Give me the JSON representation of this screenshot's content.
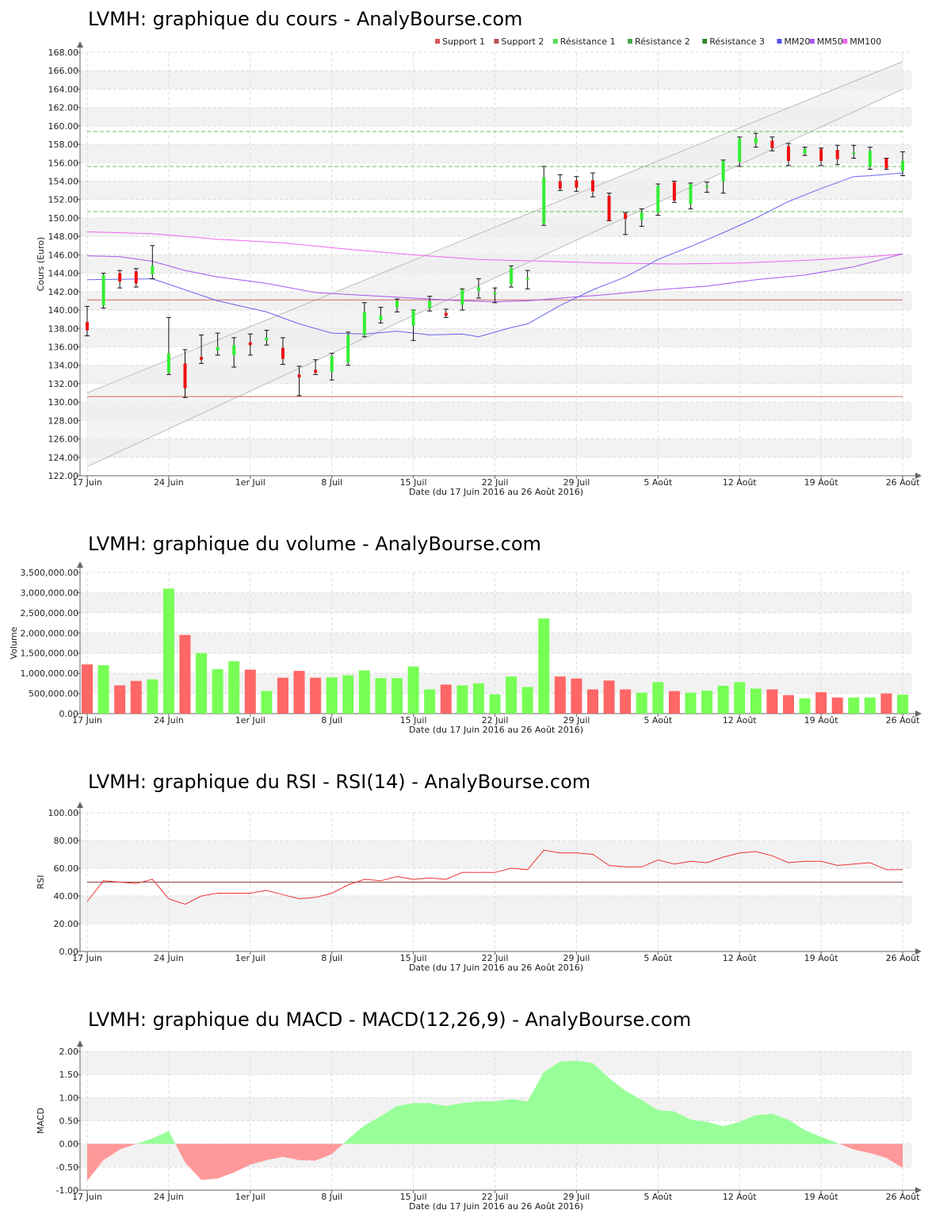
{
  "titles": {
    "price": "LVMH: graphique du cours - AnalyBourse.com",
    "volume": "LVMH: graphique du volume - AnalyBourse.com",
    "rsi": "LVMH: graphique du RSI - RSI(14) - AnalyBourse.com",
    "macd": "LVMH: graphique du MACD - MACD(12,26,9) - AnalyBourse.com"
  },
  "xlabel": "Date (du 17 Juin 2016 au 26 Août 2016)",
  "colors": {
    "up": "#33ee33",
    "down": "#ee1111",
    "vol_up": "#77ff55",
    "vol_down": "#ff6666",
    "support": "#cc6666",
    "resistance": "#66bb66",
    "mm20": "#6666ee",
    "mm50": "#aa55ee",
    "mm100": "#ee66ee",
    "rsi": "#ee3333",
    "macd_pos": "#99ff99",
    "macd_neg": "#ff9999"
  },
  "chart_data": [
    {
      "type": "candlestick",
      "name": "price",
      "ylabel": "Cours (Euro)",
      "ylim": [
        122,
        168
      ],
      "xlim": [
        0,
        49
      ],
      "x_ticks": [
        {
          "i": 0,
          "label": "17 Juin"
        },
        {
          "i": 5,
          "label": "24 Juin"
        },
        {
          "i": 10,
          "label": "1er Juil"
        },
        {
          "i": 15,
          "label": "8 Juil"
        },
        {
          "i": 20,
          "label": "15 Juil"
        },
        {
          "i": 25,
          "label": "22 Juil"
        },
        {
          "i": 30,
          "label": "29 Juil"
        },
        {
          "i": 35,
          "label": "5 Août"
        },
        {
          "i": 40,
          "label": "12 Août"
        },
        {
          "i": 45,
          "label": "19 Août"
        },
        {
          "i": 50,
          "label": "26 Août"
        }
      ],
      "y_ticks": [
        "122.00",
        "124.00",
        "126.00",
        "128.00",
        "130.00",
        "132.00",
        "134.00",
        "136.00",
        "138.00",
        "140.00",
        "142.00",
        "144.00",
        "146.00",
        "148.00",
        "150.00",
        "152.00",
        "154.00",
        "156.00",
        "158.00",
        "160.00",
        "162.00",
        "164.00",
        "166.00",
        "168.00"
      ],
      "legend": [
        "Support 1",
        "Support 2",
        "Résistance 1",
        "Résistance 2",
        "Résistance 3",
        "MM20",
        "MM50",
        "MM100"
      ],
      "legend_colors": [
        "#dd5555",
        "#bb5555",
        "#55dd55",
        "#44aa44",
        "#338833",
        "#5555ee",
        "#aa55ee",
        "#ee66ee"
      ],
      "ohlc": [
        [
          138.7,
          140.4,
          137.2,
          137.8
        ],
        [
          140.5,
          144.0,
          140.2,
          143.8
        ],
        [
          144.0,
          144.3,
          142.4,
          143.1
        ],
        [
          144.2,
          144.5,
          142.5,
          142.9
        ],
        [
          143.9,
          147.0,
          143.4,
          144.8
        ],
        [
          133.2,
          139.2,
          133.0,
          135.3
        ],
        [
          134.2,
          135.7,
          130.5,
          131.5
        ],
        [
          134.9,
          137.3,
          134.2,
          134.6
        ],
        [
          135.6,
          137.5,
          135.1,
          136.0
        ],
        [
          135.1,
          137.0,
          133.8,
          136.2
        ],
        [
          136.5,
          137.4,
          135.1,
          136.2
        ],
        [
          136.7,
          137.8,
          136.2,
          137.0
        ],
        [
          135.9,
          137.0,
          134.1,
          134.7
        ],
        [
          133.0,
          133.9,
          130.7,
          132.7
        ],
        [
          133.5,
          134.6,
          133.0,
          133.2
        ],
        [
          133.3,
          135.3,
          132.4,
          135.0
        ],
        [
          134.3,
          137.6,
          134.0,
          137.3
        ],
        [
          137.3,
          140.8,
          137.1,
          139.8
        ],
        [
          138.9,
          140.3,
          138.6,
          139.4
        ],
        [
          140.3,
          141.2,
          139.8,
          141.0
        ],
        [
          138.3,
          140.0,
          136.7,
          140.0
        ],
        [
          140.2,
          141.5,
          139.9,
          141.0
        ],
        [
          139.7,
          140.1,
          139.2,
          139.4
        ],
        [
          140.6,
          142.3,
          140.0,
          142.2
        ],
        [
          142.1,
          143.4,
          141.3,
          142.5
        ],
        [
          141.7,
          142.4,
          140.8,
          141.9
        ],
        [
          142.8,
          144.8,
          142.5,
          144.6
        ],
        [
          143.3,
          144.3,
          142.3,
          143.5
        ],
        [
          149.4,
          155.6,
          149.2,
          154.4
        ],
        [
          154.0,
          154.7,
          153.0,
          153.2
        ],
        [
          154.1,
          154.5,
          152.9,
          153.3
        ],
        [
          154.1,
          154.9,
          152.3,
          152.9
        ],
        [
          152.4,
          152.7,
          149.7,
          149.7
        ],
        [
          150.5,
          150.6,
          148.2,
          149.9
        ],
        [
          149.8,
          151.0,
          149.1,
          150.6
        ],
        [
          150.6,
          153.7,
          150.3,
          153.5
        ],
        [
          153.9,
          154.0,
          151.7,
          151.9
        ],
        [
          151.5,
          153.8,
          151.0,
          153.7
        ],
        [
          153.4,
          153.9,
          152.8,
          153.5
        ],
        [
          154.0,
          156.3,
          152.7,
          156.2
        ],
        [
          156.1,
          158.8,
          155.6,
          158.6
        ],
        [
          158.1,
          159.2,
          157.7,
          158.7
        ],
        [
          158.4,
          158.8,
          157.3,
          157.6
        ],
        [
          157.8,
          158.1,
          155.7,
          156.2
        ],
        [
          157.0,
          157.7,
          156.8,
          157.5
        ],
        [
          157.5,
          157.6,
          155.7,
          156.2
        ],
        [
          157.4,
          157.9,
          155.8,
          156.4
        ],
        [
          157.1,
          157.9,
          156.5,
          157.1
        ],
        [
          155.6,
          157.7,
          155.3,
          157.3
        ],
        [
          156.5,
          156.5,
          155.3,
          155.4
        ],
        [
          155.1,
          157.2,
          154.6,
          156.2
        ]
      ],
      "support_1": 141.1,
      "support_2": 130.6,
      "resistance_1": 150.7,
      "resistance_2": 155.6,
      "resistance_3": 159.4,
      "channel_lower": [
        [
          0,
          123.0
        ],
        [
          50,
          164.0
        ]
      ],
      "channel_upper": [
        [
          0,
          131.0
        ],
        [
          50,
          167.0
        ]
      ],
      "mm20": [
        [
          0,
          143.3
        ],
        [
          4,
          143.4
        ],
        [
          5,
          142.8
        ],
        [
          8,
          141.0
        ],
        [
          11,
          139.8
        ],
        [
          13,
          138.5
        ],
        [
          15,
          137.5
        ],
        [
          17,
          137.4
        ],
        [
          19,
          137.7
        ],
        [
          21,
          137.3
        ],
        [
          23,
          137.4
        ],
        [
          24,
          137.1
        ],
        [
          26,
          138.1
        ],
        [
          27,
          138.5
        ],
        [
          29,
          140.5
        ],
        [
          31,
          142.2
        ],
        [
          33,
          143.6
        ],
        [
          35,
          145.5
        ],
        [
          37,
          146.9
        ],
        [
          39,
          148.4
        ],
        [
          41,
          150.0
        ],
        [
          43,
          151.8
        ],
        [
          45,
          153.2
        ],
        [
          47,
          154.5
        ],
        [
          48,
          154.6
        ],
        [
          50,
          154.9
        ]
      ],
      "mm50": [
        [
          0,
          145.9
        ],
        [
          2,
          145.8
        ],
        [
          4,
          145.3
        ],
        [
          6,
          144.3
        ],
        [
          8,
          143.6
        ],
        [
          11,
          142.9
        ],
        [
          14,
          141.9
        ],
        [
          17,
          141.6
        ],
        [
          20,
          141.3
        ],
        [
          23,
          141.0
        ],
        [
          25,
          140.9
        ],
        [
          27,
          141.0
        ],
        [
          29,
          141.3
        ],
        [
          32,
          141.7
        ],
        [
          35,
          142.2
        ],
        [
          38,
          142.6
        ],
        [
          41,
          143.3
        ],
        [
          44,
          143.8
        ],
        [
          47,
          144.7
        ],
        [
          50,
          146.1
        ]
      ],
      "mm100": [
        [
          0,
          148.5
        ],
        [
          4,
          148.3
        ],
        [
          8,
          147.7
        ],
        [
          12,
          147.3
        ],
        [
          16,
          146.6
        ],
        [
          20,
          146.0
        ],
        [
          24,
          145.5
        ],
        [
          28,
          145.3
        ],
        [
          32,
          145.1
        ],
        [
          36,
          145.0
        ],
        [
          40,
          145.1
        ],
        [
          44,
          145.4
        ],
        [
          48,
          145.8
        ],
        [
          50,
          146.1
        ]
      ]
    },
    {
      "type": "bar",
      "name": "volume",
      "ylabel": "Volume",
      "ylim": [
        0,
        3500000
      ],
      "y_ticks": [
        "0.00",
        "500,000.00",
        "1,000,000.00",
        "1,500,000.00",
        "2,000,000.00",
        "2,500,000.00",
        "3,000,000.00",
        "3,500,000.00"
      ],
      "values": [
        1220000,
        1200000,
        700000,
        810000,
        850000,
        3100000,
        1950000,
        1500000,
        1100000,
        1300000,
        1090000,
        560000,
        890000,
        1060000,
        890000,
        900000,
        950000,
        1070000,
        880000,
        880000,
        1170000,
        600000,
        720000,
        700000,
        750000,
        480000,
        920000,
        660000,
        2360000,
        920000,
        870000,
        600000,
        820000,
        600000,
        520000,
        780000,
        560000,
        520000,
        570000,
        690000,
        780000,
        620000,
        600000,
        460000,
        380000,
        530000,
        400000,
        400000,
        400000,
        500000,
        470000
      ],
      "up": [
        false,
        true,
        false,
        false,
        true,
        true,
        false,
        true,
        true,
        true,
        false,
        true,
        false,
        false,
        false,
        true,
        true,
        true,
        true,
        true,
        true,
        true,
        false,
        true,
        true,
        true,
        true,
        true,
        true,
        false,
        false,
        false,
        false,
        false,
        true,
        true,
        false,
        true,
        true,
        true,
        true,
        true,
        false,
        false,
        true,
        false,
        false,
        true,
        true,
        false,
        true
      ]
    },
    {
      "type": "line",
      "name": "rsi",
      "ylabel": "RSI",
      "ylim": [
        0,
        100
      ],
      "y_ticks": [
        "0.00",
        "20.00",
        "40.00",
        "60.00",
        "80.00",
        "100.00"
      ],
      "reference": 50,
      "values": [
        36,
        51,
        50,
        49,
        52,
        38,
        34,
        40,
        42,
        42,
        42,
        44,
        41,
        38,
        39,
        42,
        48,
        52,
        51,
        54,
        52,
        53,
        52,
        57,
        57,
        57,
        60,
        59,
        73,
        71,
        71,
        70,
        62,
        61,
        61,
        66,
        63,
        65,
        64,
        68,
        71,
        72,
        69,
        64,
        65,
        65,
        62,
        63,
        64,
        59,
        59
      ]
    },
    {
      "type": "area",
      "name": "macd",
      "ylabel": "MACD",
      "ylim": [
        -1,
        2
      ],
      "y_ticks": [
        "-1.00",
        "-0.50",
        "0.00",
        "0.50",
        "1.00",
        "1.50",
        "2.00"
      ],
      "values": [
        -0.8,
        -0.35,
        -0.12,
        0.0,
        0.12,
        0.28,
        -0.4,
        -0.78,
        -0.75,
        -0.62,
        -0.45,
        -0.35,
        -0.28,
        -0.35,
        -0.36,
        -0.22,
        0.1,
        0.4,
        0.6,
        0.82,
        0.88,
        0.88,
        0.82,
        0.88,
        0.92,
        0.92,
        0.97,
        0.92,
        1.55,
        1.78,
        1.8,
        1.75,
        1.42,
        1.15,
        0.95,
        0.73,
        0.7,
        0.52,
        0.48,
        0.38,
        0.48,
        0.62,
        0.65,
        0.52,
        0.3,
        0.15,
        0.02,
        -0.12,
        -0.2,
        -0.3,
        -0.52
      ]
    }
  ]
}
